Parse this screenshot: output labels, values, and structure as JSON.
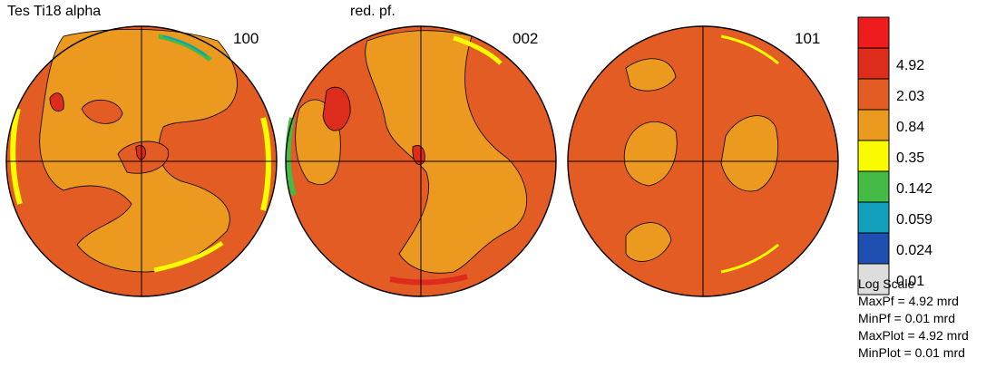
{
  "header": {
    "title": "Tes Ti18 alpha",
    "subtitle": "red. pf."
  },
  "chart_data": {
    "type": "heatmap",
    "title": "Tes Ti18 alpha",
    "subtitle": "red. pf.",
    "scale": "log",
    "poles": [
      {
        "label": "100",
        "max": 4.92
      },
      {
        "label": "002",
        "max": 4.92
      },
      {
        "label": "101",
        "max": 2.03
      }
    ],
    "legend": {
      "levels": [
        {
          "value": null,
          "color": "#ee1c1c"
        },
        {
          "value": "4.92",
          "color": "#dd2c1c"
        },
        {
          "value": "2.03",
          "color": "#e25c24"
        },
        {
          "value": "0.84",
          "color": "#eb9a1f"
        },
        {
          "value": "0.35",
          "color": "#fafa00"
        },
        {
          "value": "0.142",
          "color": "#44bb44"
        },
        {
          "value": "0.059",
          "color": "#119fbb"
        },
        {
          "value": "0.024",
          "color": "#1f4fb0"
        },
        {
          "value": "0.01",
          "color": "#dddddd"
        }
      ]
    }
  },
  "stats": {
    "scale": "Log Scale",
    "maxpf": "MaxPf = 4.92 mrd",
    "minpf": "MinPf = 0.01 mrd",
    "maxplot": "MaxPlot = 4.92 mrd",
    "minplot": "MinPlot = 0.01 mrd"
  },
  "colors": {
    "dark_red": "#dd2c1c",
    "orange_red": "#e25c24",
    "orange": "#eb9a1f",
    "yellow": "#fafa00",
    "green": "#44bb44",
    "cyan": "#119fbb"
  }
}
